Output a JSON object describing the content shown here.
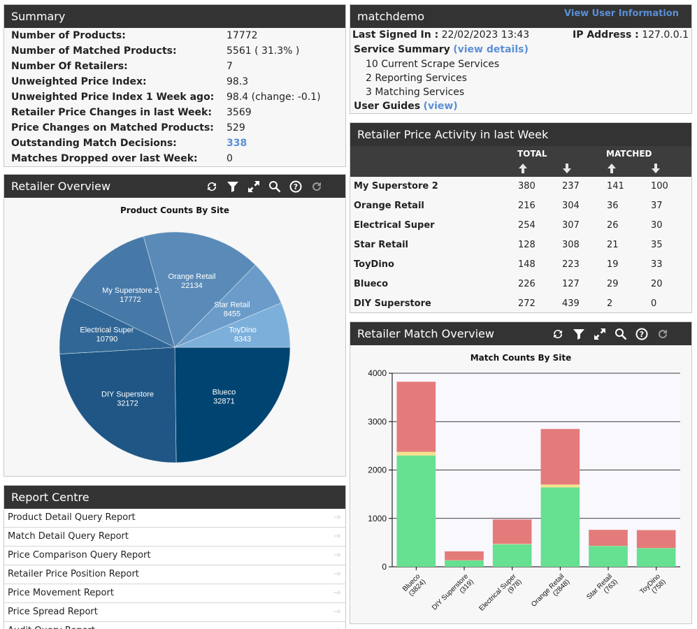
{
  "summary": {
    "title": "Summary",
    "rows": [
      {
        "label": "Number of Products:",
        "value": "17772"
      },
      {
        "label": "Number of Matched Products:",
        "value": "5561 ( 31.3% )"
      },
      {
        "label": "Number Of Retailers:",
        "value": "7"
      },
      {
        "label": "Unweighted Price Index:",
        "value": "98.3"
      },
      {
        "label": "Unweighted Price Index 1 Week ago:",
        "value": "98.4 (change: -0.1)"
      },
      {
        "label": "Retailer Price Changes in last Week:",
        "value": "3569"
      },
      {
        "label": "Price Changes on Matched Products:",
        "value": "529"
      },
      {
        "label": "Outstanding Match Decisions:",
        "value": "338"
      },
      {
        "label": "Matches Dropped over last Week:",
        "value": "0"
      }
    ]
  },
  "retailer_overview": {
    "title": "Retailer Overview",
    "chart_title": "Product Counts By Site"
  },
  "toolbar_icons": [
    "refresh-icon",
    "filter-icon",
    "expand-icon",
    "search-icon",
    "help-icon",
    "reset-icon"
  ],
  "report_centre": {
    "title": "Report Centre",
    "items": [
      "Product Detail Query Report",
      "Match Detail Query Report",
      "Price Comparison Query Report",
      "Retailer Price Position Report",
      "Price Movement Report",
      "Price Spread Report",
      "Audit Query Report"
    ]
  },
  "account": {
    "username": "matchdemo",
    "view_user_info": "View User Information",
    "last_signed_label": "Last Signed In :",
    "last_signed_value": "22/02/2023 13:43",
    "ip_label": "IP Address :",
    "ip_value": "127.0.0.1",
    "service_summary_label": "Service Summary",
    "view_details": "(view details)",
    "services": [
      "10 Current Scrape Services",
      "2 Reporting Services",
      "3 Matching Services"
    ],
    "user_guides_label": "User Guides",
    "user_guides_link": "(view)"
  },
  "activity": {
    "title": "Retailer Price Activity in last Week",
    "total_label": "TOTAL",
    "matched_label": "MATCHED",
    "rows": [
      {
        "name": "My Superstore 2",
        "total_up": "380",
        "total_down": "237",
        "matched_up": "141",
        "matched_down": "100"
      },
      {
        "name": "Orange Retail",
        "total_up": "216",
        "total_down": "304",
        "matched_up": "36",
        "matched_down": "37"
      },
      {
        "name": "Electrical Super",
        "total_up": "254",
        "total_down": "307",
        "matched_up": "26",
        "matched_down": "30"
      },
      {
        "name": "Star Retail",
        "total_up": "128",
        "total_down": "308",
        "matched_up": "21",
        "matched_down": "35"
      },
      {
        "name": "ToyDino",
        "total_up": "148",
        "total_down": "223",
        "matched_up": "19",
        "matched_down": "33"
      },
      {
        "name": "Blueco",
        "total_up": "226",
        "total_down": "127",
        "matched_up": "29",
        "matched_down": "20"
      },
      {
        "name": "DIY Superstore",
        "total_up": "272",
        "total_down": "439",
        "matched_up": "2",
        "matched_down": "0"
      }
    ]
  },
  "match_overview": {
    "title": "Retailer Match Overview",
    "chart_title": "Match Counts By Site"
  },
  "colors": {
    "header_bg": "#333333",
    "link": "#5b8fd6",
    "bar_green": "#66e091",
    "bar_yellow": "#f2e28d",
    "bar_red": "#e47b7b",
    "pie": [
      "#004472",
      "#1f5685",
      "#316796",
      "#4679a8",
      "#5a8bb8",
      "#6b9bc8",
      "#7cb0db"
    ]
  },
  "chart_data": [
    {
      "type": "pie",
      "title": "Product Counts By Site",
      "slices": [
        {
          "name": "Blueco",
          "label": "32871",
          "value": 32871
        },
        {
          "name": "DIY Superstore",
          "label": "32172",
          "value": 32172
        },
        {
          "name": "Electrical Super",
          "label": "10790",
          "value": 10790
        },
        {
          "name": "My Superstore 2",
          "label": "17772",
          "value": 17772
        },
        {
          "name": "Orange Retail",
          "label": "22134",
          "value": 22134
        },
        {
          "name": "Star Retail",
          "label": "8455",
          "value": 8455
        },
        {
          "name": "ToyDino",
          "label": "8343",
          "value": 8343
        }
      ]
    },
    {
      "type": "bar",
      "stacked": true,
      "title": "Match Counts By Site",
      "categories": [
        "Blueco",
        "DIY Superstore",
        "Electrical Super",
        "Orange Retail",
        "Star Retail",
        "ToyDino"
      ],
      "category_labels": [
        "(3824)",
        "(319)",
        "(978)",
        "(2848)",
        "(763)",
        "(758)"
      ],
      "series": [
        {
          "values": [
            2300,
            130,
            465,
            1640,
            430,
            385
          ]
        },
        {
          "values": [
            75,
            5,
            8,
            60,
            3,
            3
          ]
        },
        {
          "values": [
            1449,
            184,
            505,
            1148,
            330,
            370
          ]
        }
      ],
      "ylim": [
        0,
        4000
      ],
      "yticks": [
        "0",
        "1000",
        "2000",
        "3000",
        "4000"
      ],
      "grid": true
    }
  ]
}
